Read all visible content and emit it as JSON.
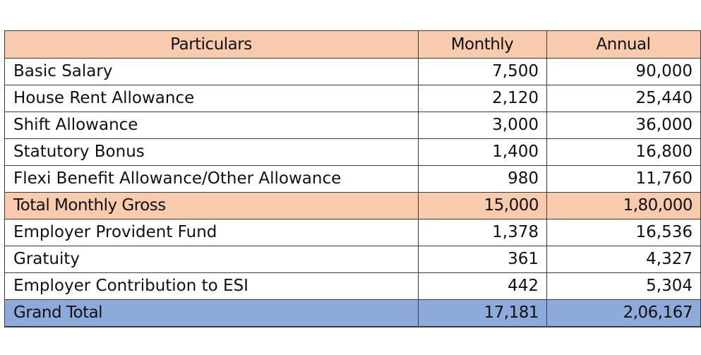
{
  "table": {
    "headers": {
      "particulars": "Particulars",
      "monthly": "Monthly",
      "annual": "Annual"
    },
    "rows": [
      {
        "particular": "Basic Salary",
        "monthly": "7,500",
        "annual": "90,000"
      },
      {
        "particular": "House Rent Allowance",
        "monthly": "2,120",
        "annual": "25,440"
      },
      {
        "particular": "Shift Allowance",
        "monthly": "3,000",
        "annual": "36,000"
      },
      {
        "particular": "Statutory Bonus",
        "monthly": "1,400",
        "annual": "16,800"
      },
      {
        "particular": "Flexi Benefit Allowance/Other Allowance",
        "monthly": "980",
        "annual": "11,760"
      }
    ],
    "gross": {
      "particular": "Total Monthly Gross",
      "monthly": "15,000",
      "annual": "1,80,000"
    },
    "employer_rows": [
      {
        "particular": "Employer Provident Fund",
        "monthly": "1,378",
        "annual": "16,536"
      },
      {
        "particular": "Gratuity",
        "monthly": "361",
        "annual": "4,327"
      },
      {
        "particular": "Employer Contribution to ESI",
        "monthly": "442",
        "annual": "5,304"
      }
    ],
    "grand_total": {
      "particular": "Grand Total",
      "monthly": "17,181",
      "annual": "2,06,167"
    }
  },
  "colors": {
    "header_bg": "#f8cbad",
    "gross_bg": "#f8cbad",
    "grand_total_bg": "#8eaadb"
  }
}
